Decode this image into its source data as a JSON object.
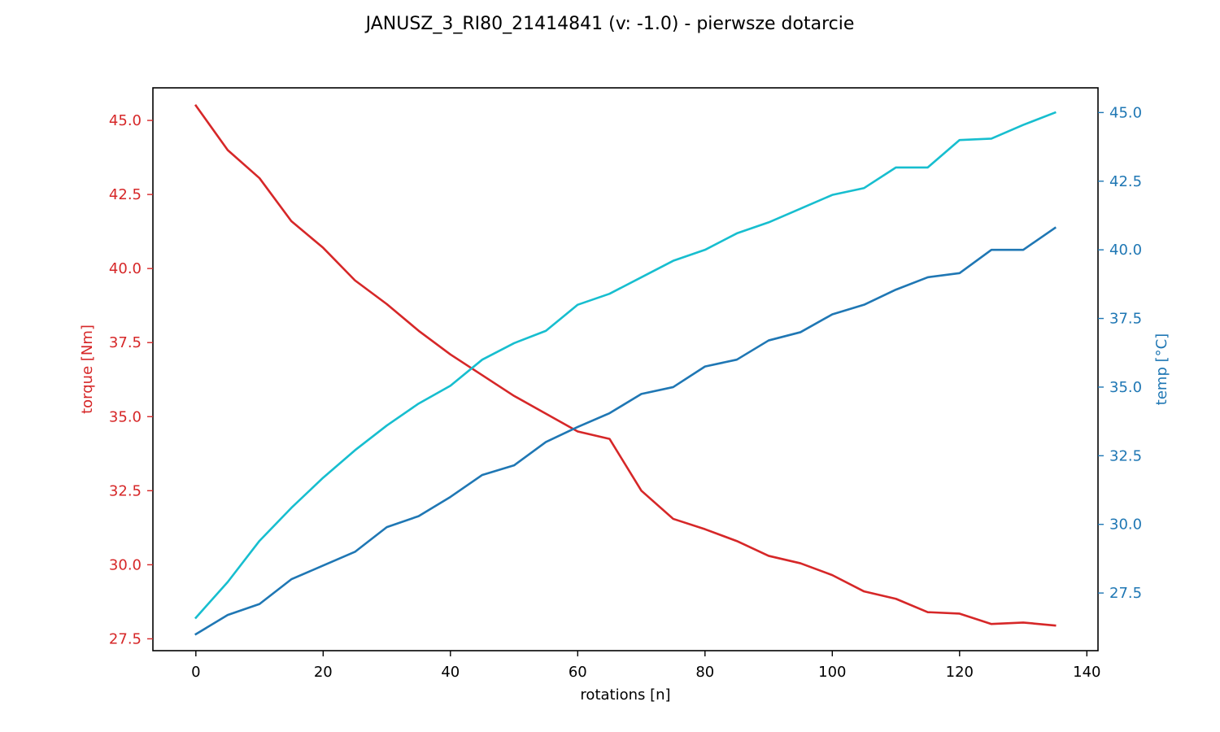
{
  "chart_data": {
    "type": "line",
    "title": "JANUSZ_3_RI80_21414841 (v: -1.0) - pierwsze dotarcie",
    "xlabel": "rotations [n]",
    "ylabel_left": "torque [Nm]",
    "ylabel_right": "temp [°C]",
    "xlim": [
      -6.75,
      141.75
    ],
    "ylim_left": [
      27.1,
      46.1
    ],
    "ylim_right": [
      25.4,
      45.9
    ],
    "x_ticks": [
      "0",
      "20",
      "40",
      "60",
      "80",
      "100",
      "120",
      "140"
    ],
    "y_ticks_left": [
      "27.5",
      "30.0",
      "32.5",
      "35.0",
      "37.5",
      "40.0",
      "42.5",
      "45.0"
    ],
    "y_ticks_right": [
      "27.5",
      "30.0",
      "32.5",
      "35.0",
      "37.5",
      "40.0",
      "42.5",
      "45.0"
    ],
    "grid": false,
    "x": [
      0,
      5,
      10,
      15,
      20,
      25,
      30,
      35,
      40,
      45,
      50,
      55,
      60,
      65,
      70,
      75,
      80,
      85,
      90,
      95,
      100,
      105,
      110,
      115,
      120,
      125,
      130,
      135
    ],
    "series": [
      {
        "axis": "left",
        "color": "#d62728",
        "values": [
          45.5,
          44.0,
          43.05,
          41.6,
          40.7,
          39.6,
          38.8,
          37.9,
          37.1,
          36.4,
          35.7,
          35.1,
          34.5,
          34.25,
          32.5,
          31.55,
          31.2,
          30.8,
          30.3,
          30.05,
          29.65,
          29.1,
          28.85,
          28.4,
          28.35,
          28.0,
          28.05,
          27.95
        ]
      },
      {
        "axis": "right",
        "color": "#17becf",
        "values": [
          26.6,
          27.9,
          29.4,
          30.6,
          31.7,
          32.7,
          33.6,
          34.4,
          35.05,
          36.0,
          36.6,
          37.05,
          38.0,
          38.4,
          39.0,
          39.6,
          40.0,
          40.6,
          41.0,
          41.5,
          42.0,
          42.25,
          43.0,
          43.0,
          44.0,
          44.05,
          44.55,
          45.0
        ]
      },
      {
        "axis": "right",
        "color": "#1f77b4",
        "values": [
          26.0,
          26.7,
          27.1,
          28.0,
          28.5,
          29.0,
          29.9,
          30.3,
          31.0,
          31.8,
          32.15,
          33.0,
          33.55,
          34.05,
          34.75,
          35.0,
          35.75,
          36.0,
          36.7,
          37.0,
          37.65,
          38.0,
          38.55,
          39.0,
          39.15,
          40.0,
          40.0,
          40.8
        ]
      }
    ],
    "left_axis_color": "#d62728",
    "right_axis_color": "#1f77b4"
  }
}
